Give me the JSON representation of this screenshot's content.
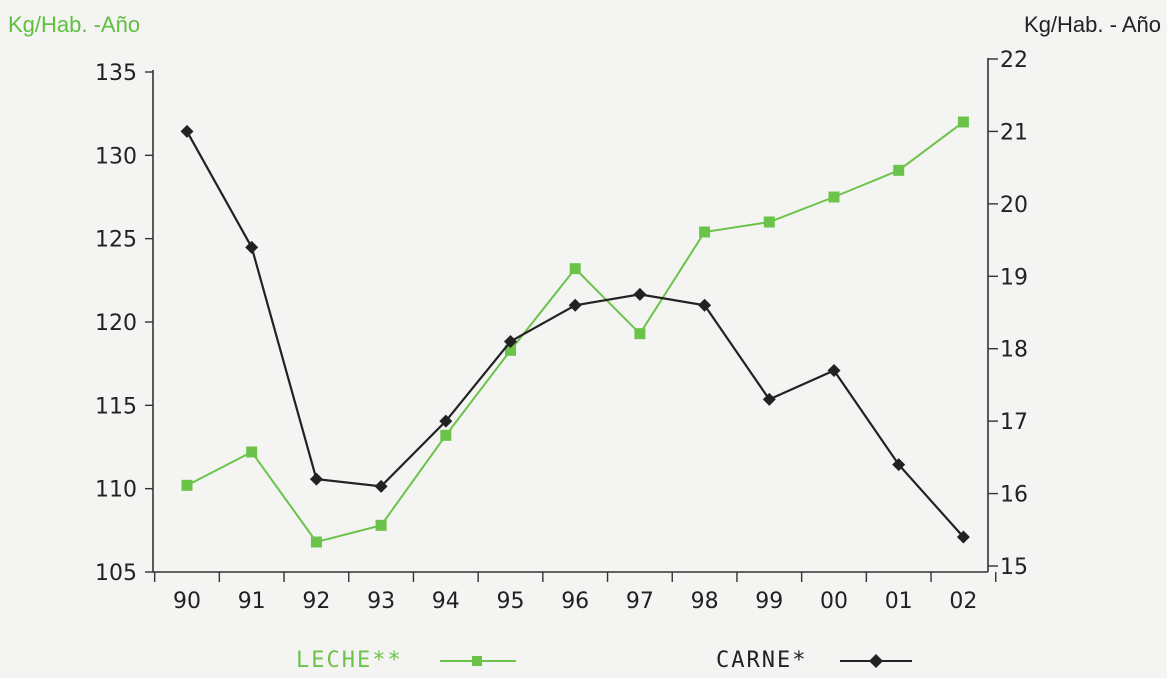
{
  "chart_data": {
    "type": "line",
    "categories": [
      "90",
      "91",
      "92",
      "93",
      "94",
      "95",
      "96",
      "97",
      "98",
      "99",
      "00",
      "01",
      "02"
    ],
    "y_left_label": "Kg/Hab. -Año",
    "y_right_label": "Kg/Hab. - Año",
    "y_left_range": [
      105,
      135
    ],
    "y_left_ticks": [
      105,
      110,
      115,
      120,
      125,
      130,
      135
    ],
    "y_right_range": [
      15,
      22
    ],
    "y_right_ticks": [
      15,
      16,
      17,
      18,
      19,
      20,
      21,
      22
    ],
    "series": [
      {
        "name": "LECHE**",
        "axis": "left",
        "color": "#6cc34a",
        "marker": "square",
        "values": [
          110.2,
          112.2,
          106.8,
          107.8,
          113.2,
          118.3,
          123.2,
          119.3,
          125.4,
          126.0,
          127.5,
          129.1,
          132.0
        ]
      },
      {
        "name": "CARNE*",
        "axis": "right",
        "color": "#222222",
        "marker": "diamond",
        "values": [
          21.0,
          19.4,
          16.2,
          16.1,
          17.0,
          18.1,
          18.6,
          18.75,
          18.6,
          17.3,
          17.7,
          16.4,
          15.4
        ]
      }
    ],
    "legend_position": "bottom",
    "grid": false
  }
}
